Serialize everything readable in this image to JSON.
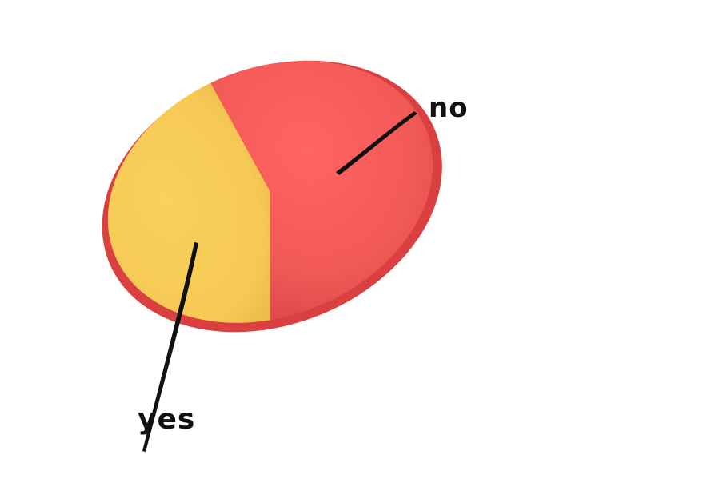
{
  "chart_data": {
    "type": "pie",
    "title": "",
    "slices": [
      {
        "label": "no",
        "value": 56,
        "color": "#f25a57"
      },
      {
        "label": "yes",
        "value": 44,
        "color": "#f6c954"
      }
    ],
    "legend": "none",
    "data_labels": "leader-lines"
  }
}
